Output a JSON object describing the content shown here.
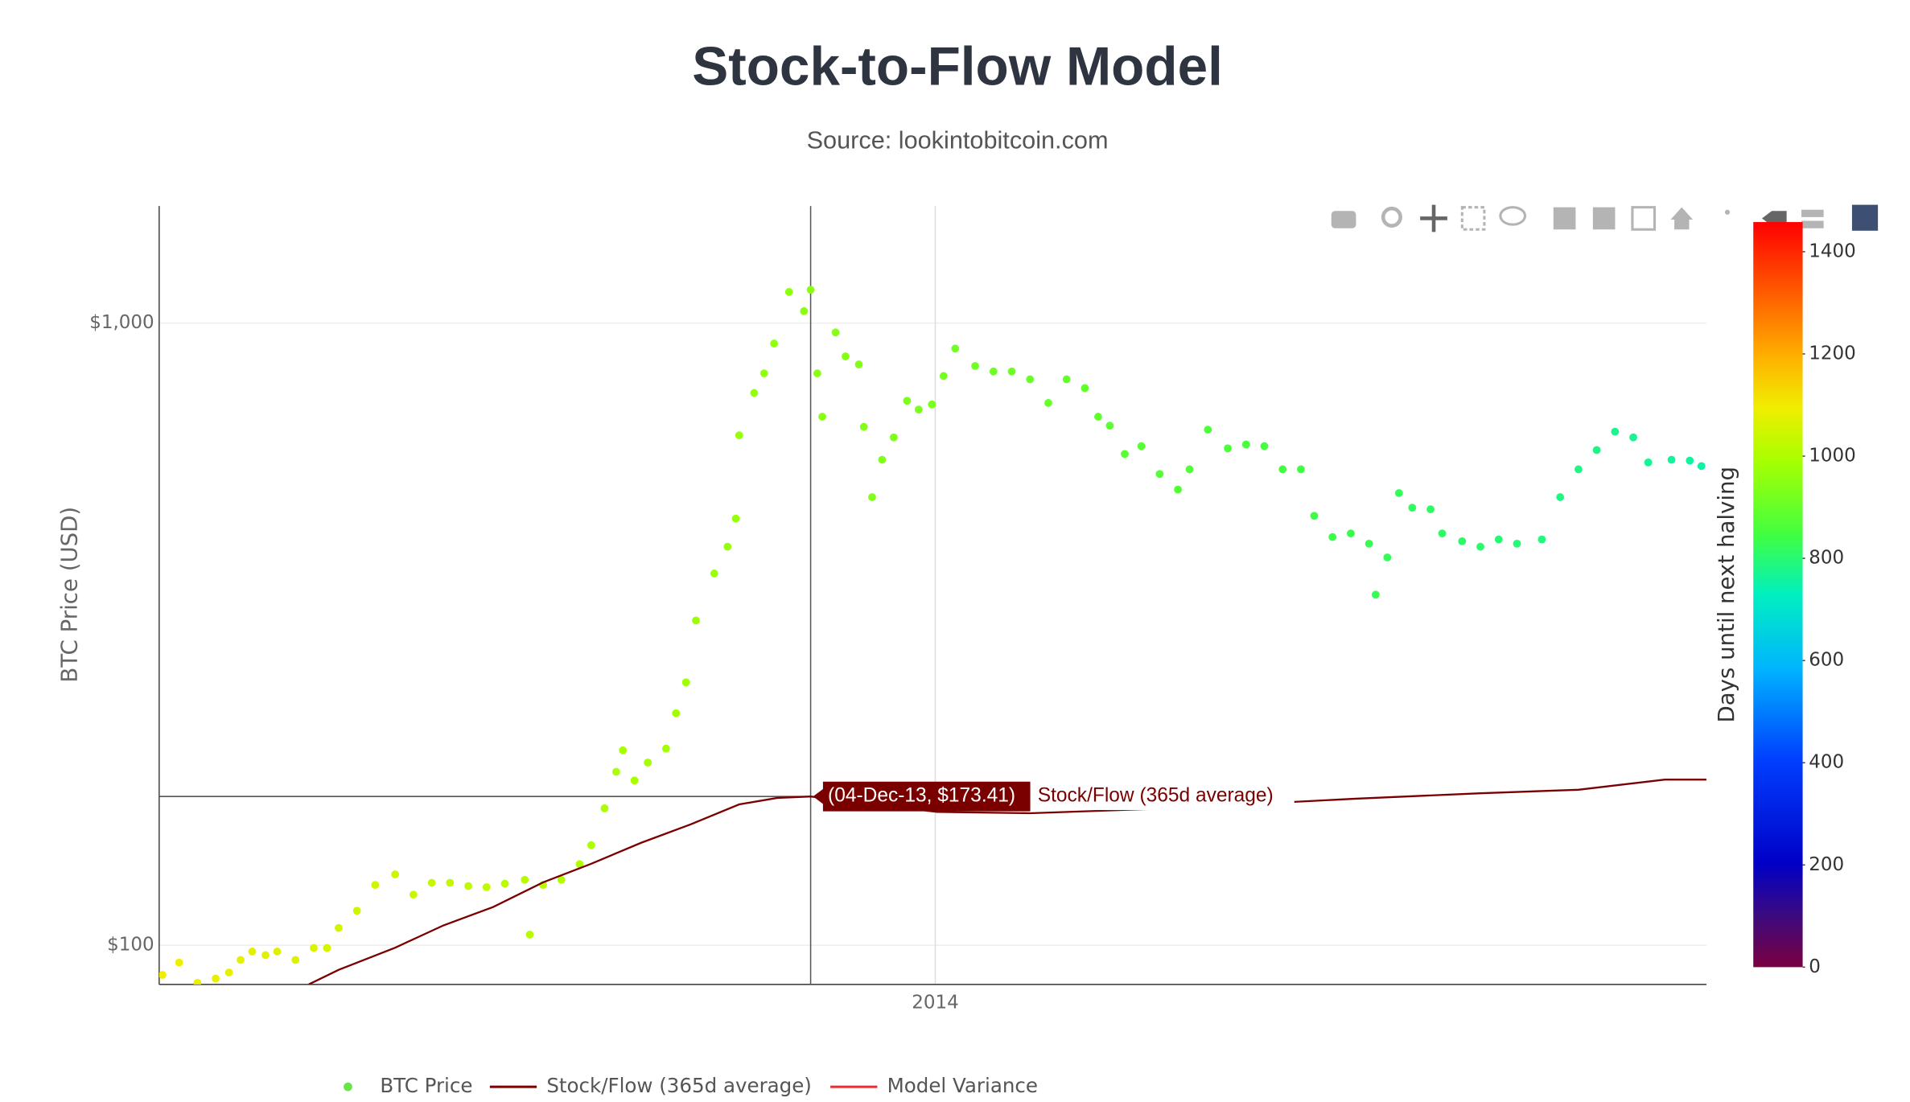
{
  "chart_data": {
    "type": "scatter",
    "title": "Stock-to-Flow Model",
    "subtitle": "Source: lookintobitcoin.com",
    "y_label": "BTC Price (USD)",
    "xlim": [
      2013.533,
      2014.464
    ],
    "xticks": [
      2014
    ],
    "ylim": [
      86.5,
      1542
    ],
    "yticks": [
      {
        "value": 100,
        "label": "$100"
      },
      {
        "value": 1000,
        "label": "$1,000"
      }
    ],
    "y_log": true,
    "grid": true,
    "colorbar": {
      "title": "Days until next halving",
      "lim": [
        0,
        1458
      ],
      "ticks": [
        0,
        200,
        400,
        600,
        800,
        1000,
        1200,
        1400
      ],
      "colorscale": [
        [
          0,
          "#7a0040"
        ],
        [
          0.07,
          "#3b0a80"
        ],
        [
          0.14,
          "#0000c8"
        ],
        [
          0.28,
          "#0040ff"
        ],
        [
          0.4,
          "#00b4ff"
        ],
        [
          0.5,
          "#00f0c0"
        ],
        [
          0.58,
          "#40ff40"
        ],
        [
          0.68,
          "#a8ff00"
        ],
        [
          0.75,
          "#f0ee00"
        ],
        [
          0.82,
          "#ffb000"
        ],
        [
          0.9,
          "#ff6000"
        ],
        [
          1,
          "#ff0000"
        ]
      ]
    },
    "series": [
      {
        "name": "BTC Price",
        "type": "scatter",
        "color": "#66e544",
        "x": [
          2013.535,
          2013.545,
          2013.556,
          2013.567,
          2013.575,
          2013.582,
          2013.589,
          2013.597,
          2013.604,
          2013.615,
          2013.626,
          2013.634,
          2013.641,
          2013.652,
          2013.663,
          2013.675,
          2013.686,
          2013.697,
          2013.708,
          2013.719,
          2013.73,
          2013.741,
          2013.753,
          2013.756,
          2013.764,
          2013.775,
          2013.786,
          2013.793,
          2013.801,
          2013.808,
          2013.812,
          2013.819,
          2013.827,
          2013.838,
          2013.844,
          2013.85,
          2013.856,
          2013.867,
          2013.875,
          2013.88,
          2013.882,
          2013.891,
          2013.897,
          2013.903,
          2013.912,
          2013.921,
          2013.925,
          2013.929,
          2013.932,
          2013.94,
          2013.946,
          2013.954,
          2013.957,
          2013.962,
          2013.968,
          2013.975,
          2013.983,
          2013.99,
          2013.998,
          2014.005,
          2014.012,
          2014.024,
          2014.035,
          2014.046,
          2014.057,
          2014.068,
          2014.079,
          2014.09,
          2014.098,
          2014.105,
          2014.114,
          2014.124,
          2014.135,
          2014.146,
          2014.153,
          2014.164,
          2014.176,
          2014.187,
          2014.198,
          2014.209,
          2014.22,
          2014.228,
          2014.239,
          2014.25,
          2014.261,
          2014.265,
          2014.272,
          2014.279,
          2014.287,
          2014.298,
          2014.305,
          2014.317,
          2014.328,
          2014.339,
          2014.35,
          2014.365,
          2014.376,
          2014.387,
          2014.398,
          2014.409,
          2014.42,
          2014.429,
          2014.443,
          2014.454,
          2014.461
        ],
        "values": [
          89.6,
          93.8,
          87,
          88.4,
          90.4,
          94.7,
          97.7,
          96.4,
          97.7,
          94.7,
          99,
          99,
          106.6,
          113.6,
          125,
          130,
          120.6,
          126,
          126,
          124.5,
          124,
          125.6,
          127.4,
          104,
          125,
          127.4,
          135,
          144.8,
          166,
          190,
          205.7,
          184,
          196.6,
          207,
          236,
          264.6,
          332.6,
          395.8,
          437,
          485,
          660,
          772,
          830,
          927,
          1122,
          1045,
          1131,
          830,
          707,
          966,
          884,
          858,
          681,
          525,
          603,
          655,
          750,
          726,
          740,
          822,
          910,
          853,
          836,
          836,
          812,
          744,
          812,
          786,
          707,
          684,
          616,
          634,
          572,
          540,
          582,
          674,
          629,
          638,
          634,
          582,
          582,
          490,
          453,
          459,
          442,
          366,
          420,
          533,
          505,
          502,
          459,
          446,
          437,
          449,
          442,
          449,
          525,
          582,
          625,
          669,
          655,
          597,
          603,
          601,
          589
        ],
        "days": [
          1093,
          1090,
          1086,
          1082,
          1079,
          1076,
          1073,
          1071,
          1068,
          1064,
          1060,
          1057,
          1054,
          1050,
          1046,
          1042,
          1038,
          1034,
          1030,
          1026,
          1022,
          1018,
          1014,
          1012,
          1010,
          1006,
          1002,
          999,
          996,
          994,
          992,
          990,
          987,
          983,
          980,
          978,
          976,
          972,
          969,
          967,
          966,
          963,
          961,
          959,
          956,
          952,
          951,
          949,
          948,
          945,
          943,
          940,
          939,
          937,
          935,
          932,
          930,
          927,
          924,
          922,
          919,
          915,
          911,
          907,
          903,
          899,
          895,
          891,
          888,
          885,
          882,
          878,
          874,
          870,
          867,
          863,
          859,
          855,
          851,
          847,
          843,
          841,
          837,
          833,
          829,
          827,
          825,
          822,
          819,
          815,
          813,
          809,
          804,
          800,
          796,
          791,
          787,
          783,
          778,
          774,
          770,
          767,
          762,
          758,
          755
        ]
      },
      {
        "name": "Stock/Flow (365d average)",
        "type": "line",
        "color": "#7a0000",
        "x": [
          2013.623,
          2013.641,
          2013.675,
          2013.704,
          2013.734,
          2013.764,
          2013.793,
          2013.823,
          2013.853,
          2013.882,
          2013.905,
          2013.925,
          2014.001,
          2014.057,
          2014.142,
          2014.216,
          2014.253,
          2014.328,
          2014.387,
          2014.439,
          2014.464
        ],
        "values": [
          86.5,
          91.3,
          99.1,
          107.6,
          115.2,
          126.2,
          135.2,
          146.1,
          156.5,
          168.4,
          172.5,
          173.41,
          163.8,
          163,
          166,
          170,
          172,
          175.5,
          177.8,
          184.6,
          184.6
        ]
      },
      {
        "name": "Model Variance",
        "type": "line",
        "color": "#e03030"
      }
    ],
    "hover": {
      "x": 2013.925,
      "y": 173.41,
      "text": "(04-Dec-13, $173.41)"
    }
  }
}
